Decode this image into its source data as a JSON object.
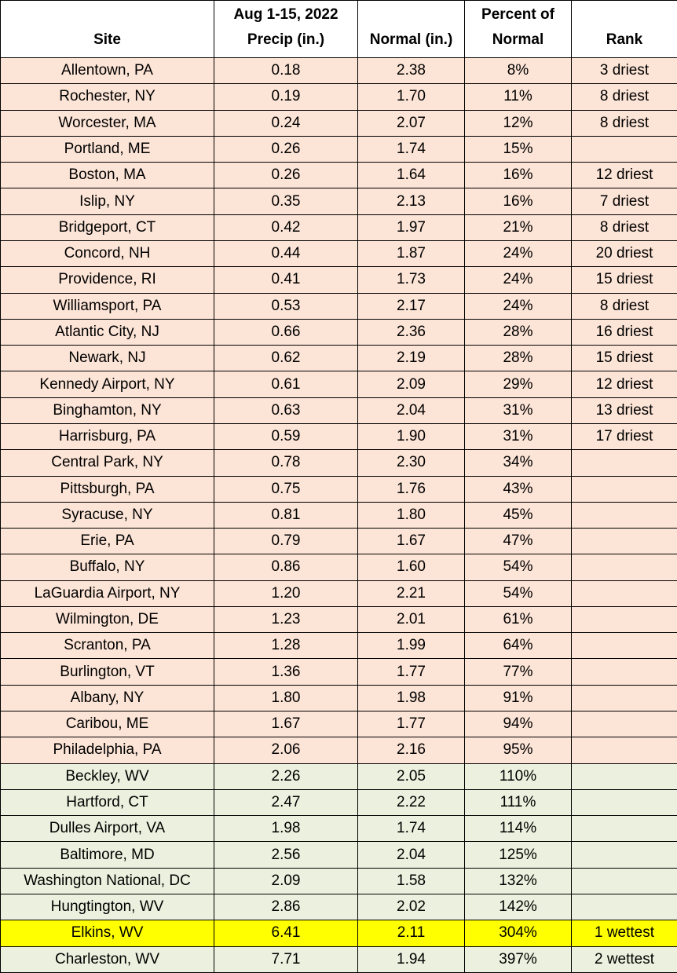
{
  "table": {
    "header": [
      [
        "Site"
      ],
      [
        "Aug 1-15, 2022",
        "Precip (in.)"
      ],
      [
        "Normal (in.)"
      ],
      [
        "Percent of",
        "Normal"
      ],
      [
        "Rank"
      ]
    ],
    "groups": [
      {
        "fill": "#fce4d6",
        "rows": [
          {
            "site": "Allentown, PA",
            "precip": "0.18",
            "normal": "2.38",
            "percent": "8%",
            "rank": "3 driest"
          },
          {
            "site": "Rochester, NY",
            "precip": "0.19",
            "normal": "1.70",
            "percent": "11%",
            "rank": "8 driest"
          },
          {
            "site": "Worcester, MA",
            "precip": "0.24",
            "normal": "2.07",
            "percent": "12%",
            "rank": "8 driest"
          },
          {
            "site": "Portland, ME",
            "precip": "0.26",
            "normal": "1.74",
            "percent": "15%"
          },
          {
            "site": "Boston, MA",
            "precip": "0.26",
            "normal": "1.64",
            "percent": "16%",
            "rank": "12 driest"
          },
          {
            "site": "Islip, NY",
            "precip": "0.35",
            "normal": "2.13",
            "percent": "16%",
            "rank": "7 driest"
          },
          {
            "site": "Bridgeport, CT",
            "precip": "0.42",
            "normal": "1.97",
            "percent": "21%",
            "rank": "8 driest"
          },
          {
            "site": "Concord, NH",
            "precip": "0.44",
            "normal": "1.87",
            "percent": "24%",
            "rank": "20 driest"
          },
          {
            "site": "Providence, RI",
            "precip": "0.41",
            "normal": "1.73",
            "percent": "24%",
            "rank": "15 driest"
          },
          {
            "site": "Williamsport, PA",
            "precip": "0.53",
            "normal": "2.17",
            "percent": "24%",
            "rank": "8 driest"
          },
          {
            "site": "Atlantic City, NJ",
            "precip": "0.66",
            "normal": "2.36",
            "percent": "28%",
            "rank": "16 driest"
          },
          {
            "site": "Newark, NJ",
            "precip": "0.62",
            "normal": "2.19",
            "percent": "28%",
            "rank": "15 driest"
          },
          {
            "site": "Kennedy Airport, NY",
            "precip": "0.61",
            "normal": "2.09",
            "percent": "29%",
            "rank": "12 driest"
          },
          {
            "site": "Binghamton, NY",
            "precip": "0.63",
            "normal": "2.04",
            "percent": "31%",
            "rank": "13 driest"
          },
          {
            "site": "Harrisburg, PA",
            "precip": "0.59",
            "normal": "1.90",
            "percent": "31%",
            "rank": "17 driest"
          },
          {
            "site": "Central Park, NY",
            "precip": "0.78",
            "normal": "2.30",
            "percent": "34%"
          },
          {
            "site": "Pittsburgh, PA",
            "precip": "0.75",
            "normal": "1.76",
            "percent": "43%"
          },
          {
            "site": "Syracuse, NY",
            "precip": "0.81",
            "normal": "1.80",
            "percent": "45%"
          },
          {
            "site": "Erie, PA",
            "precip": "0.79",
            "normal": "1.67",
            "percent": "47%"
          },
          {
            "site": "Buffalo, NY",
            "precip": "0.86",
            "normal": "1.60",
            "percent": "54%"
          },
          {
            "site": "LaGuardia Airport, NY",
            "precip": "1.20",
            "normal": "2.21",
            "percent": "54%"
          },
          {
            "site": "Wilmington, DE",
            "precip": "1.23",
            "normal": "2.01",
            "percent": "61%"
          },
          {
            "site": "Scranton, PA",
            "precip": "1.28",
            "normal": "1.99",
            "percent": "64%"
          },
          {
            "site": "Burlington, VT",
            "precip": "1.36",
            "normal": "1.77",
            "percent": "77%"
          },
          {
            "site": "Albany, NY",
            "precip": "1.80",
            "normal": "1.98",
            "percent": "91%"
          },
          {
            "site": "Caribou, ME",
            "precip": "1.67",
            "normal": "1.77",
            "percent": "94%"
          },
          {
            "site": "Philadelphia, PA",
            "precip": "2.06",
            "normal": "2.16",
            "percent": "95%"
          }
        ]
      },
      {
        "fill": "#ebf1de",
        "rows": [
          {
            "site": "Beckley, WV",
            "precip": "2.26",
            "normal": "2.05",
            "percent": "110%"
          },
          {
            "site": "Hartford, CT",
            "precip": "2.47",
            "normal": "2.22",
            "percent": "111%"
          },
          {
            "site": "Dulles Airport, VA",
            "precip": "1.98",
            "normal": "1.74",
            "percent": "114%"
          },
          {
            "site": "Baltimore, MD",
            "precip": "2.56",
            "normal": "2.04",
            "percent": "125%"
          },
          {
            "site": "Washington National, DC",
            "precip": "2.09",
            "normal": "1.58",
            "percent": "132%"
          },
          {
            "site": "Hungtington, WV",
            "precip": "2.86",
            "normal": "2.02",
            "percent": "142%"
          },
          {
            "site": "Elkins, WV",
            "precip": "6.41",
            "normal": "2.11",
            "percent": "304%",
            "rank": "1 wettest",
            "highlight": "#ffff00"
          },
          {
            "site": "Charleston, WV",
            "precip": "7.71",
            "normal": "1.94",
            "percent": "397%",
            "rank": "2 wettest"
          }
        ]
      }
    ]
  }
}
